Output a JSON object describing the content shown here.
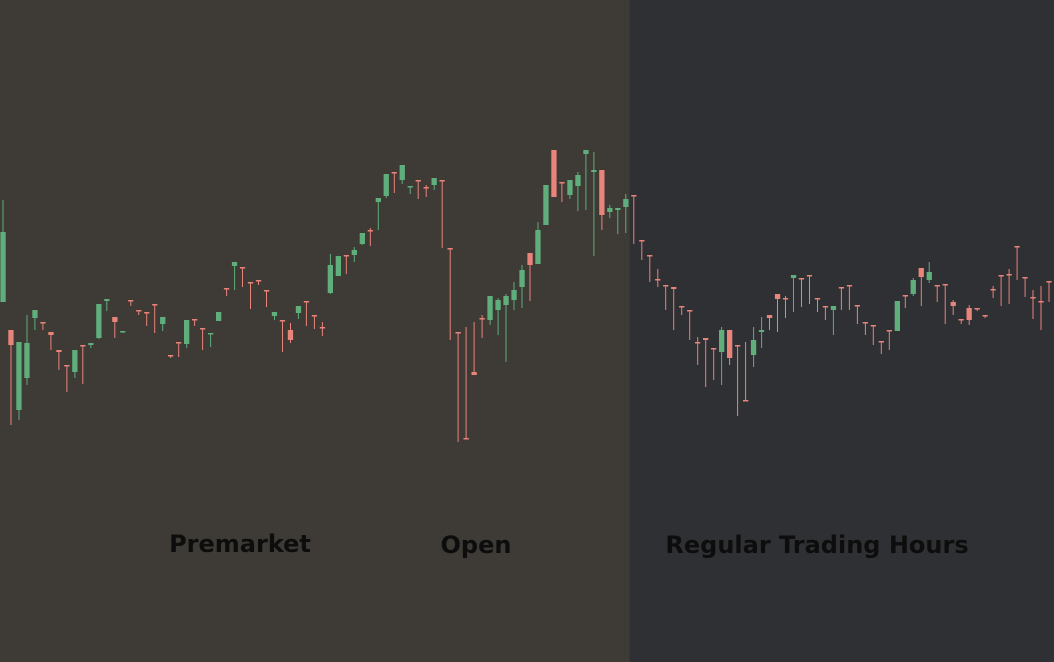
{
  "chart_data": {
    "type": "candlestick",
    "title": "",
    "xlabel": "",
    "ylabel": "",
    "axes_visible": false,
    "grid": false,
    "up_color": "#5fae7c",
    "down_color": "#e8847a",
    "sessions": [
      {
        "name": "premarket",
        "label": "Premarket",
        "color": "#3e3a35",
        "start": 0,
        "end": 79
      },
      {
        "name": "regular",
        "label": "Regular Trading Hours",
        "color": "#2f3033",
        "start": 79,
        "end": 176
      }
    ],
    "annotations": [
      {
        "name": "open",
        "label": "Open",
        "index": 79
      }
    ],
    "ylim": [
      0,
      662
    ],
    "candles": [
      [
        302,
        232,
        200,
        225
      ],
      [
        330,
        345,
        425,
        410
      ],
      [
        410,
        342,
        420,
        378
      ],
      [
        378,
        343,
        385,
        315
      ],
      [
        318,
        310,
        330,
        312
      ],
      [
        322,
        322,
        330,
        325
      ],
      [
        332,
        335,
        350,
        340
      ],
      [
        350,
        352,
        370,
        368
      ],
      [
        365,
        365,
        392,
        375
      ],
      [
        372,
        350,
        378,
        350
      ],
      [
        345,
        345,
        384,
        382
      ],
      [
        345,
        343,
        348,
        345
      ],
      [
        338,
        304,
        339,
        304
      ],
      [
        301,
        299,
        311,
        301
      ],
      [
        317,
        322,
        338,
        335
      ],
      [
        332,
        331,
        333,
        332
      ],
      [
        300,
        301,
        306,
        305
      ],
      [
        310,
        311,
        315,
        312
      ],
      [
        312,
        312,
        326,
        314
      ],
      [
        304,
        304,
        333,
        333
      ],
      [
        324,
        317,
        331,
        317
      ],
      [
        355,
        355,
        358,
        356
      ],
      [
        342,
        342,
        357,
        355
      ],
      [
        344,
        320,
        348,
        320
      ],
      [
        319,
        319,
        326,
        325
      ],
      [
        328,
        328,
        350,
        348
      ],
      [
        334,
        333,
        347,
        334
      ],
      [
        321,
        312,
        321,
        312
      ],
      [
        288,
        288,
        296,
        294
      ],
      [
        266,
        262,
        290,
        264
      ],
      [
        267,
        267,
        287,
        286
      ],
      [
        282,
        282,
        309,
        306
      ],
      [
        280,
        280,
        285,
        283
      ],
      [
        290,
        290,
        307,
        304
      ],
      [
        316,
        312,
        320,
        316
      ],
      [
        320,
        320,
        352,
        350
      ],
      [
        330,
        340,
        343,
        323
      ],
      [
        313,
        306,
        319,
        306
      ],
      [
        301,
        301,
        326,
        324
      ],
      [
        315,
        315,
        329,
        325
      ],
      [
        327,
        327,
        336,
        322
      ],
      [
        293,
        265,
        294,
        254
      ],
      [
        276,
        256,
        276,
        256
      ],
      [
        255,
        255,
        274,
        270
      ],
      [
        255,
        250,
        262,
        247
      ],
      [
        244,
        233,
        245,
        233
      ],
      [
        230,
        230,
        246,
        228
      ],
      [
        202,
        198,
        230,
        200
      ],
      [
        196,
        174,
        198,
        190
      ],
      [
        172,
        172,
        193,
        188
      ],
      [
        180,
        165,
        180,
        184
      ],
      [
        187,
        186,
        194,
        187
      ],
      [
        180,
        180,
        199,
        193
      ],
      [
        187,
        188,
        197,
        185
      ],
      [
        185,
        178,
        190,
        180
      ],
      [
        180,
        180,
        248,
        248
      ],
      [
        248,
        248,
        340,
        340
      ],
      [
        332,
        332,
        442,
        442
      ],
      [
        438,
        438,
        380,
        327
      ],
      [
        372,
        375,
        322,
        322
      ],
      [
        318,
        318,
        338,
        315
      ],
      [
        320,
        296,
        325,
        308
      ],
      [
        310,
        300,
        335,
        298
      ],
      [
        305,
        296,
        362,
        294
      ],
      [
        300,
        290,
        310,
        282
      ],
      [
        287,
        270,
        308,
        265
      ],
      [
        253,
        265,
        301,
        262
      ],
      [
        264,
        230,
        264,
        222
      ],
      [
        225,
        185,
        225,
        185
      ],
      [
        150,
        197,
        152,
        185
      ],
      [
        182,
        182,
        202,
        195
      ],
      [
        195,
        180,
        199,
        180
      ],
      [
        186,
        175,
        211,
        172
      ],
      [
        154,
        150,
        210,
        150
      ],
      [
        172,
        170,
        256,
        152
      ],
      [
        170,
        215,
        230,
        201
      ],
      [
        212,
        208,
        218,
        205
      ],
      [
        210,
        208,
        234,
        213
      ],
      [
        207,
        199,
        233,
        194
      ],
      [
        195,
        195,
        244,
        240
      ],
      [
        240,
        240,
        260,
        252
      ],
      [
        255,
        255,
        282,
        278
      ],
      [
        279,
        279,
        287,
        269
      ],
      [
        285,
        285,
        310,
        288
      ],
      [
        287,
        289,
        330,
        307
      ],
      [
        306,
        306,
        315,
        312
      ],
      [
        310,
        310,
        335,
        340
      ],
      [
        342,
        342,
        365,
        337
      ],
      [
        338,
        340,
        387,
        347
      ],
      [
        348,
        348,
        380,
        366
      ],
      [
        352,
        330,
        385,
        327
      ],
      [
        330,
        358,
        365,
        342
      ],
      [
        345,
        345,
        416,
        404
      ],
      [
        400,
        400,
        342,
        355
      ],
      [
        355,
        340,
        367,
        327
      ],
      [
        332,
        330,
        348,
        317
      ],
      [
        315,
        318,
        330,
        316
      ],
      [
        294,
        299,
        332,
        297
      ],
      [
        298,
        298,
        318,
        296
      ],
      [
        278,
        275,
        312,
        279
      ],
      [
        278,
        278,
        307,
        283
      ],
      [
        275,
        275,
        304,
        299
      ],
      [
        298,
        298,
        312,
        303
      ],
      [
        306,
        306,
        320,
        310
      ],
      [
        310,
        306,
        335,
        307
      ],
      [
        287,
        287,
        310,
        300
      ],
      [
        285,
        285,
        310,
        307
      ],
      [
        305,
        305,
        324,
        319
      ],
      [
        322,
        322,
        335,
        330
      ],
      [
        325,
        325,
        345,
        345
      ],
      [
        341,
        341,
        354,
        351
      ],
      [
        330,
        330,
        350,
        348
      ],
      [
        331,
        301,
        331,
        301
      ],
      [
        295,
        295,
        308,
        295
      ],
      [
        294,
        280,
        296,
        278
      ],
      [
        268,
        277,
        306,
        274
      ],
      [
        280,
        272,
        283,
        262
      ],
      [
        285,
        285,
        302,
        302
      ],
      [
        284,
        284,
        324,
        305
      ],
      [
        302,
        306,
        315,
        300
      ],
      [
        319,
        319,
        324,
        322
      ],
      [
        308,
        320,
        325,
        305
      ],
      [
        308,
        309,
        311,
        308
      ],
      [
        315,
        315,
        315,
        318
      ],
      [
        289,
        289,
        298,
        286
      ],
      [
        275,
        275,
        306,
        300
      ],
      [
        274,
        274,
        304,
        269
      ],
      [
        246,
        246,
        280,
        278
      ],
      [
        277,
        277,
        282,
        297
      ],
      [
        297,
        297,
        319,
        290
      ],
      [
        301,
        301,
        330,
        286
      ],
      [
        281,
        281,
        302,
        296
      ]
    ]
  }
}
